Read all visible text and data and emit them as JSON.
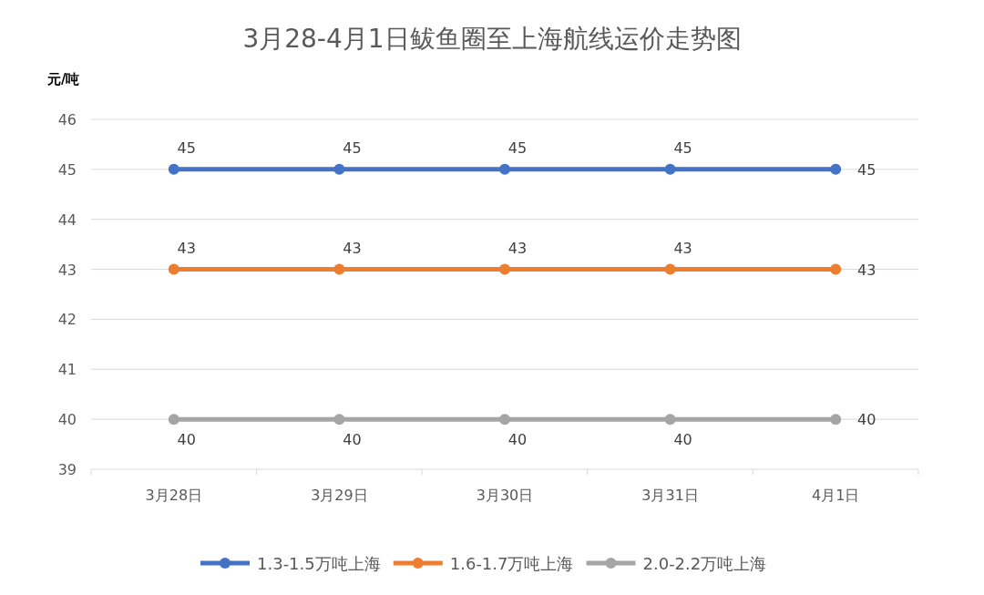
{
  "chart_data": {
    "type": "line",
    "title": "3月28-4月1日鲅鱼圈至上海航线运价走势图",
    "ylabel": "元/吨",
    "categories": [
      "3月28日",
      "3月29日",
      "3月30日",
      "3月31日",
      "4月1日"
    ],
    "series": [
      {
        "name": "1.3-1.5万吨上海",
        "color": "#4472c4",
        "values": [
          45,
          45,
          45,
          45,
          45
        ]
      },
      {
        "name": "1.6-1.7万吨上海",
        "color": "#ed7d31",
        "values": [
          43,
          43,
          43,
          43,
          43
        ]
      },
      {
        "name": "2.0-2.2万吨上海",
        "color": "#a5a5a5",
        "values": [
          40,
          40,
          40,
          40,
          40
        ]
      }
    ],
    "ylim": [
      39,
      46
    ],
    "yticks": [
      39,
      40,
      41,
      42,
      43,
      44,
      45,
      46
    ],
    "grid": "y",
    "legend": "bottom",
    "marker": "circle",
    "line_style": "solid",
    "data_labels": true
  }
}
